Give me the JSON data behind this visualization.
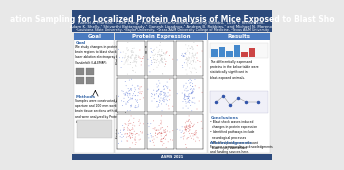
{
  "title": "ation Sampling for Localized Protein Analysis of Mice Exposed to Blast Sho",
  "author1": "Rachel A. Murrian,¹ Chen Dong,¹ Fabricio Bommarutinha,¹ Touonly Sokobu,¹ Luke T. Richardson,¹",
  "author2": "Adam K. Shelly,¹ Shivarthi Battangady,¹ Ganesh Lipadnya,¹ Andrew B. Robbins,¹ and Michael N. Moreno¹",
  "author3": "¹Louisiana State University, ²Baylor University, ³Texas A&M University College of Medicine, ⁴Texas A&M University",
  "poster_bg": "#e8e8e8",
  "header_bg": "#2c4a7c",
  "header_text_color": "#ffffff",
  "panel_bg": "#ffffff",
  "panel_edge": "#cccccc",
  "accent_color": "#3a6aaa",
  "title_fontsize": 5.5,
  "author_fontsize": 2.8,
  "section_fontsize": 4.0,
  "body_fontsize": 2.2,
  "header_section_color": "#4a7abf",
  "goal_header": "Goal",
  "mid_header": "Protein Expression",
  "right_header": "Results",
  "bottom_bar_color": "#2c4a7c",
  "scatter_colors": [
    "#888888",
    "#3355cc",
    "#cc3333"
  ]
}
